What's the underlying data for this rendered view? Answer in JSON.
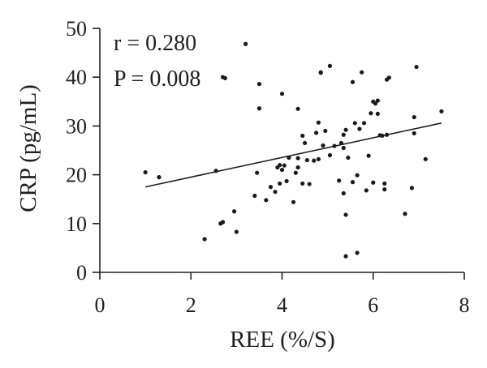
{
  "chart_data": {
    "type": "scatter",
    "xlabel": "REE (%/S)",
    "ylabel": "CRP (pg/mL)",
    "xlim": [
      0,
      8
    ],
    "ylim": [
      0,
      50
    ],
    "xticks": [
      "0",
      "2",
      "4",
      "6",
      "8"
    ],
    "yticks": [
      "0",
      "10",
      "20",
      "30",
      "40",
      "50"
    ],
    "grid": false,
    "annotations": [
      "r = 0.280",
      "P = 0.008"
    ],
    "regression_line": {
      "x": [
        1.0,
        7.5
      ],
      "y": [
        17.5,
        30.6
      ]
    },
    "points": [
      [
        1.0,
        20.5
      ],
      [
        1.3,
        19.5
      ],
      [
        2.3,
        6.8
      ],
      [
        2.55,
        20.8
      ],
      [
        2.65,
        10.0
      ],
      [
        2.7,
        10.3
      ],
      [
        2.7,
        40.0
      ],
      [
        2.75,
        39.8
      ],
      [
        2.95,
        12.5
      ],
      [
        3.0,
        8.3
      ],
      [
        3.2,
        46.8
      ],
      [
        3.4,
        15.7
      ],
      [
        3.45,
        20.4
      ],
      [
        3.5,
        38.6
      ],
      [
        3.5,
        33.6
      ],
      [
        3.65,
        14.8
      ],
      [
        3.75,
        17.5
      ],
      [
        3.85,
        16.5
      ],
      [
        3.9,
        21.5
      ],
      [
        3.95,
        22.0
      ],
      [
        3.95,
        18.2
      ],
      [
        4.0,
        36.6
      ],
      [
        4.0,
        21.0
      ],
      [
        4.05,
        21.9
      ],
      [
        4.1,
        18.7
      ],
      [
        4.15,
        23.5
      ],
      [
        4.25,
        14.4
      ],
      [
        4.3,
        20.4
      ],
      [
        4.35,
        21.5
      ],
      [
        4.35,
        23.4
      ],
      [
        4.35,
        33.5
      ],
      [
        4.45,
        18.2
      ],
      [
        4.45,
        28.0
      ],
      [
        4.5,
        26.5
      ],
      [
        4.55,
        23.0
      ],
      [
        4.6,
        18.1
      ],
      [
        4.7,
        22.9
      ],
      [
        4.75,
        28.6
      ],
      [
        4.8,
        23.2
      ],
      [
        4.8,
        30.7
      ],
      [
        4.85,
        41.0
      ],
      [
        4.85,
        40.9
      ],
      [
        4.9,
        26.0
      ],
      [
        4.95,
        29.0
      ],
      [
        5.05,
        42.3
      ],
      [
        5.05,
        24.0
      ],
      [
        5.15,
        25.9
      ],
      [
        5.25,
        18.8
      ],
      [
        5.3,
        26.5
      ],
      [
        5.35,
        16.2
      ],
      [
        5.35,
        25.5
      ],
      [
        5.35,
        28.2
      ],
      [
        5.4,
        11.8
      ],
      [
        5.4,
        3.3
      ],
      [
        5.4,
        29.2
      ],
      [
        5.45,
        23.5
      ],
      [
        5.55,
        39.0
      ],
      [
        5.55,
        18.5
      ],
      [
        5.6,
        30.6
      ],
      [
        5.65,
        4.0
      ],
      [
        5.65,
        19.9
      ],
      [
        5.7,
        29.4
      ],
      [
        5.75,
        41.0
      ],
      [
        5.8,
        30.6
      ],
      [
        5.85,
        16.8
      ],
      [
        5.9,
        23.9
      ],
      [
        5.95,
        32.6
      ],
      [
        6.0,
        35.0
      ],
      [
        6.0,
        18.4
      ],
      [
        6.05,
        34.6
      ],
      [
        6.1,
        35.2
      ],
      [
        6.1,
        32.5
      ],
      [
        6.15,
        28.1
      ],
      [
        6.2,
        28.0
      ],
      [
        6.25,
        18.2
      ],
      [
        6.25,
        17.0
      ],
      [
        6.3,
        39.5
      ],
      [
        6.35,
        39.9
      ],
      [
        6.3,
        28.2
      ],
      [
        6.7,
        12.0
      ],
      [
        6.85,
        17.3
      ],
      [
        6.9,
        28.5
      ],
      [
        6.9,
        31.8
      ],
      [
        6.95,
        42.1
      ],
      [
        7.15,
        23.2
      ],
      [
        7.5,
        33.0
      ]
    ]
  }
}
